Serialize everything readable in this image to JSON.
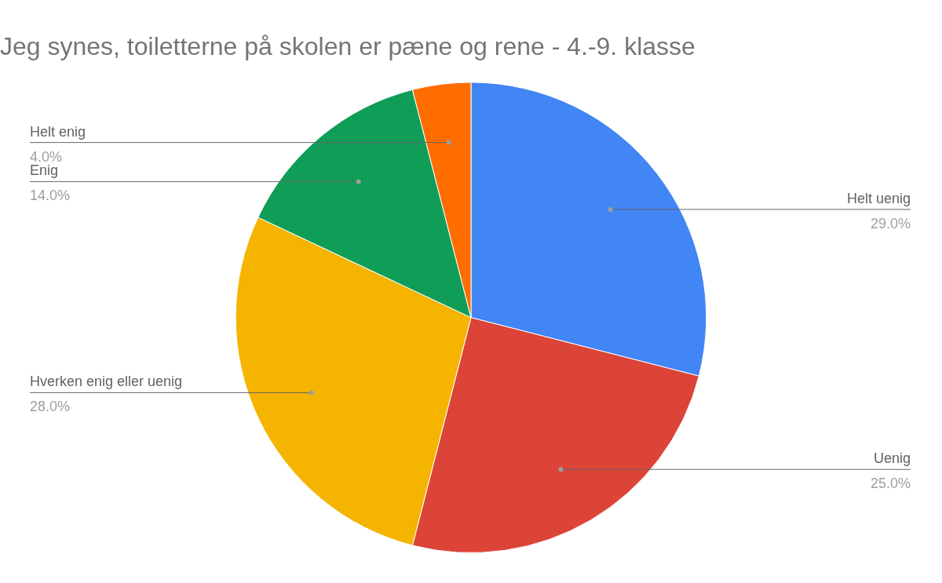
{
  "chart_data": {
    "type": "pie",
    "title": "Jeg synes, toiletterne på skolen er pæne og rene - 4.-9. klasse",
    "categories": [
      "Helt uenig",
      "Uenig",
      "Hverken enig eller uenig",
      "Enig",
      "Helt enig"
    ],
    "values": [
      29,
      25,
      28,
      14,
      4
    ],
    "colors": [
      "#4285f4",
      "#db4437",
      "#f4b400",
      "#0f9d58",
      "#ff6d01"
    ],
    "value_labels": [
      "29.0%",
      "25.0%",
      "28.0%",
      "14.0%",
      "4.0%"
    ],
    "legend": false
  }
}
